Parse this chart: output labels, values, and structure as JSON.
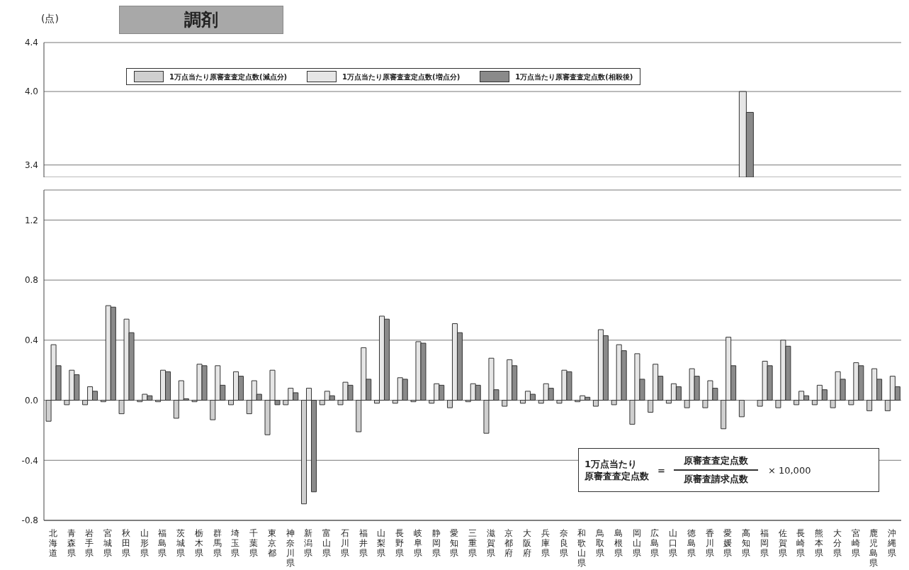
{
  "chart_data": [
    {
      "type": "bar",
      "title": "調剤",
      "ylabel": "(点)",
      "categories": [
        "北海道",
        "青森県",
        "岩手県",
        "宮城県",
        "秋田県",
        "山形県",
        "福島県",
        "茨城県",
        "栃木県",
        "群馬県",
        "埼玉県",
        "千葉県",
        "東京都",
        "神奈川県",
        "新潟県",
        "富山県",
        "石川県",
        "福井県",
        "山梨県",
        "長野県",
        "岐阜県",
        "静岡県",
        "愛知県",
        "三重県",
        "滋賀県",
        "京都府",
        "大阪府",
        "兵庫県",
        "奈良県",
        "和歌山県",
        "鳥取県",
        "島根県",
        "岡山県",
        "広島県",
        "山口県",
        "徳島県",
        "香川県",
        "愛媛県",
        "高知県",
        "福岡県",
        "佐賀県",
        "長崎県",
        "熊本県",
        "大分県",
        "宮崎県",
        "鹿児島県",
        "沖縄県"
      ],
      "series": [
        {
          "color": "#e6e6e6",
          "values": [
            null,
            null,
            null,
            null,
            null,
            null,
            null,
            null,
            null,
            null,
            null,
            null,
            null,
            null,
            null,
            null,
            null,
            null,
            null,
            null,
            null,
            null,
            null,
            null,
            null,
            null,
            null,
            null,
            null,
            null,
            null,
            null,
            null,
            null,
            null,
            null,
            null,
            null,
            4.0,
            null,
            null,
            null,
            null,
            null,
            null,
            null,
            null
          ]
        },
        {
          "color": "#8a8a8a",
          "values": [
            null,
            null,
            null,
            null,
            null,
            null,
            null,
            null,
            null,
            null,
            null,
            null,
            null,
            null,
            null,
            null,
            null,
            null,
            null,
            null,
            null,
            null,
            null,
            null,
            null,
            null,
            null,
            null,
            null,
            null,
            null,
            null,
            null,
            null,
            null,
            null,
            null,
            null,
            3.83,
            null,
            null,
            null,
            null,
            null,
            null,
            null,
            null
          ]
        }
      ],
      "ylim": [
        3.3,
        4.4
      ],
      "yticks": [
        3.4,
        {
          "value": 4,
          "label": "4.0"
        },
        4.4
      ],
      "grid": "y",
      "tick_labels": "y"
    },
    {
      "type": "bar",
      "categories": [
        "北海道",
        "青森県",
        "岩手県",
        "宮城県",
        "秋田県",
        "山形県",
        "福島県",
        "茨城県",
        "栃木県",
        "群馬県",
        "埼玉県",
        "千葉県",
        "東京都",
        "神奈川県",
        "新潟県",
        "富山県",
        "石川県",
        "福井県",
        "山梨県",
        "長野県",
        "岐阜県",
        "静岡県",
        "愛知県",
        "三重県",
        "滋賀県",
        "京都府",
        "大阪府",
        "兵庫県",
        "奈良県",
        "和歌山県",
        "鳥取県",
        "島根県",
        "岡山県",
        "広島県",
        "山口県",
        "徳島県",
        "香川県",
        "愛媛県",
        "高知県",
        "福岡県",
        "佐賀県",
        "長崎県",
        "熊本県",
        "大分県",
        "宮崎県",
        "鹿児島県",
        "沖縄県"
      ],
      "series": [
        {
          "name": "1万点当たり原審査査定点数(減点分)",
          "color": "#cfcfcf",
          "values": [
            -0.14,
            -0.03,
            -0.03,
            -0.01,
            -0.09,
            -0.01,
            -0.01,
            -0.12,
            -0.01,
            -0.13,
            -0.03,
            -0.09,
            -0.23,
            -0.03,
            -0.69,
            -0.03,
            -0.03,
            -0.21,
            -0.02,
            -0.02,
            -0.01,
            -0.02,
            -0.05,
            -0.01,
            -0.22,
            -0.04,
            -0.02,
            -0.02,
            -0.02,
            -0.01,
            -0.04,
            -0.03,
            -0.16,
            -0.08,
            -0.02,
            -0.05,
            -0.05,
            -0.19,
            -0.11,
            -0.04,
            -0.05,
            -0.03,
            -0.03,
            -0.05,
            -0.03,
            -0.07,
            -0.07
          ]
        },
        {
          "name": "1万点当たり原審査査定点数(増点分)",
          "color": "#e6e6e6",
          "values": [
            0.37,
            0.2,
            0.09,
            0.63,
            0.54,
            0.04,
            0.2,
            0.13,
            0.24,
            0.23,
            0.19,
            0.13,
            0.2,
            0.08,
            0.08,
            0.06,
            0.12,
            0.35,
            0.56,
            0.15,
            0.39,
            0.11,
            0.51,
            0.11,
            0.28,
            0.27,
            0.06,
            0.11,
            0.2,
            0.03,
            0.47,
            0.37,
            0.31,
            0.24,
            0.11,
            0.21,
            0.13,
            0.42,
            null,
            0.26,
            0.4,
            0.06,
            0.1,
            0.19,
            0.25,
            0.21,
            0.16
          ]
        },
        {
          "name": "1万点当たり原審査査定点数(相殺後)",
          "color": "#8a8a8a",
          "values": [
            0.23,
            0.17,
            0.06,
            0.62,
            0.45,
            0.03,
            0.19,
            0.01,
            0.23,
            0.1,
            0.16,
            0.04,
            -0.03,
            0.05,
            -0.61,
            0.03,
            0.1,
            0.14,
            0.54,
            0.14,
            0.38,
            0.1,
            0.45,
            0.1,
            0.07,
            0.23,
            0.04,
            0.08,
            0.19,
            0.02,
            0.43,
            0.33,
            0.14,
            0.16,
            0.09,
            0.16,
            0.08,
            0.23,
            null,
            0.23,
            0.36,
            0.03,
            0.07,
            0.14,
            0.23,
            0.14,
            0.09
          ]
        }
      ],
      "ylim": [
        -0.8,
        1.4
      ],
      "yticks": [
        -0.8,
        -0.4,
        {
          "value": 0,
          "label": "0.0"
        },
        0.4,
        0.8,
        1.2
      ],
      "grid": "y",
      "legend": "top",
      "annotations": [
        "1万点当たり",
        "原審査査定点数",
        "=",
        "原審査査定点数",
        "原審査請求点数",
        "× 10,000"
      ]
    }
  ]
}
